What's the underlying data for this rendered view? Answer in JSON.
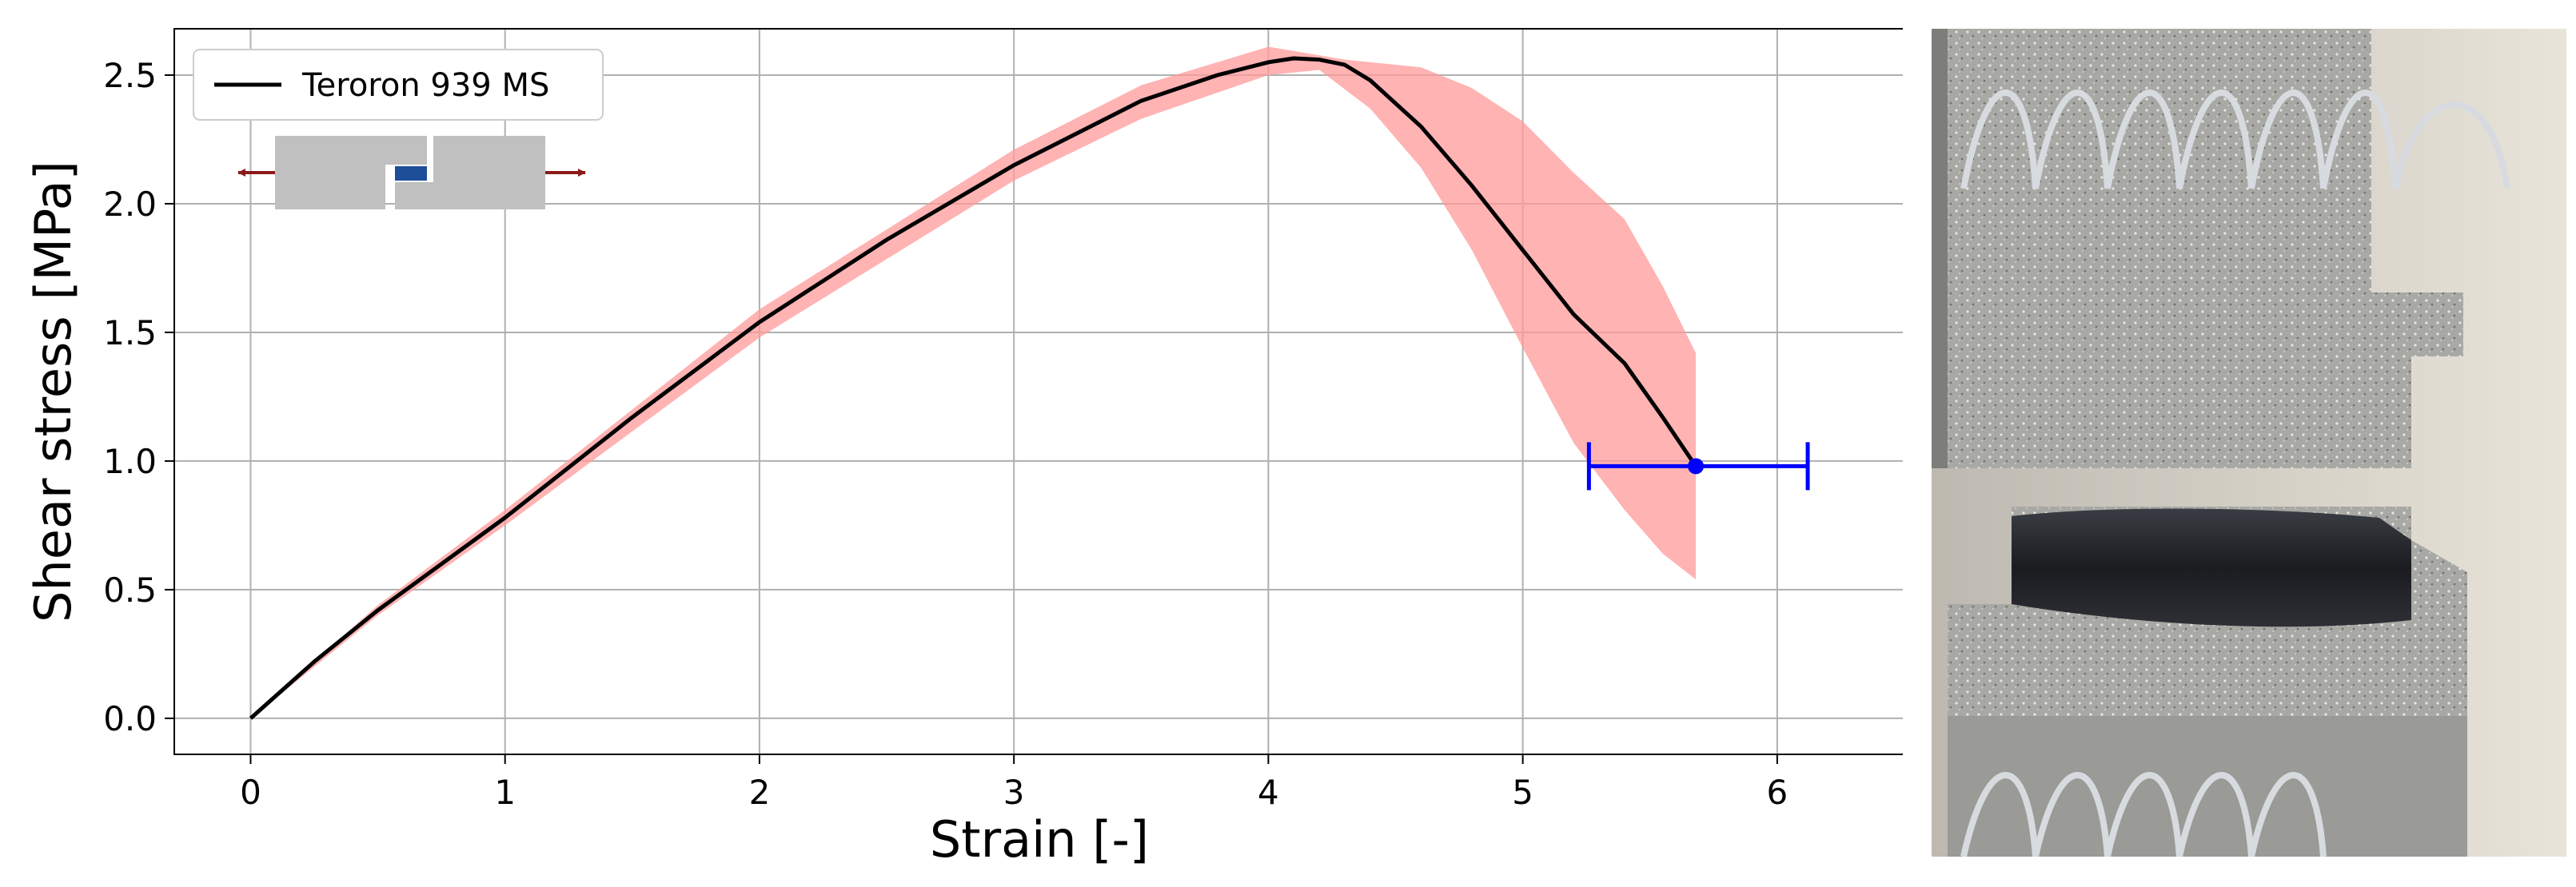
{
  "chart_data": {
    "type": "line",
    "xlabel": "Strain [-]",
    "ylabel": "Shear stress [MPa]",
    "xlim": [
      -0.3,
      6.5
    ],
    "ylim": [
      -0.14,
      2.68
    ],
    "xticks": [
      0,
      1,
      2,
      3,
      4,
      5,
      6
    ],
    "yticks": [
      0.0,
      0.5,
      1.0,
      1.5,
      2.0,
      2.5
    ],
    "xtick_labels": [
      "0",
      "1",
      "2",
      "3",
      "4",
      "5",
      "6"
    ],
    "ytick_labels": [
      "0.0",
      "0.5",
      "1.0",
      "1.5",
      "2.0",
      "2.5"
    ],
    "grid": true,
    "legend": {
      "position": "top-left",
      "entries": [
        "Teroron 939 MS"
      ]
    },
    "series": [
      {
        "name": "Teroron 939 MS",
        "color": "#000000",
        "x": [
          0,
          0.25,
          0.5,
          1.0,
          1.5,
          2.0,
          2.5,
          3.0,
          3.5,
          3.8,
          4.0,
          4.1,
          4.2,
          4.3,
          4.4,
          4.6,
          4.8,
          5.0,
          5.2,
          5.4,
          5.55,
          5.68
        ],
        "y": [
          0,
          0.22,
          0.42,
          0.78,
          1.17,
          1.54,
          1.86,
          2.15,
          2.4,
          2.5,
          2.55,
          2.565,
          2.56,
          2.54,
          2.48,
          2.3,
          2.07,
          1.82,
          1.57,
          1.38,
          1.17,
          0.98
        ]
      }
    ],
    "band": {
      "color": "#ff9999",
      "upper": {
        "x": [
          0,
          0.5,
          1.0,
          2.0,
          3.0,
          3.5,
          4.0,
          4.3,
          4.6,
          4.8,
          5.0,
          5.2,
          5.4,
          5.55,
          5.68
        ],
        "y": [
          0,
          0.44,
          0.81,
          1.59,
          2.21,
          2.46,
          2.61,
          2.56,
          2.53,
          2.45,
          2.32,
          2.12,
          1.94,
          1.68,
          1.42
        ]
      },
      "lower": {
        "x": [
          0,
          0.5,
          1.0,
          2.0,
          3.0,
          3.5,
          4.0,
          4.2,
          4.4,
          4.6,
          4.8,
          5.0,
          5.2,
          5.4,
          5.55,
          5.68
        ],
        "y": [
          0,
          0.4,
          0.75,
          1.48,
          2.09,
          2.33,
          2.5,
          2.52,
          2.37,
          2.14,
          1.82,
          1.44,
          1.07,
          0.81,
          0.64,
          0.54
        ]
      }
    },
    "endpoint": {
      "x": 5.68,
      "y": 0.98,
      "xerr": [
        5.26,
        6.12
      ],
      "color": "#0000ff"
    }
  },
  "inset_icon": {
    "block_color": "#c0c0c0",
    "adhesive_color": "#1f4e99",
    "arrow_color": "#8b1a1a"
  }
}
